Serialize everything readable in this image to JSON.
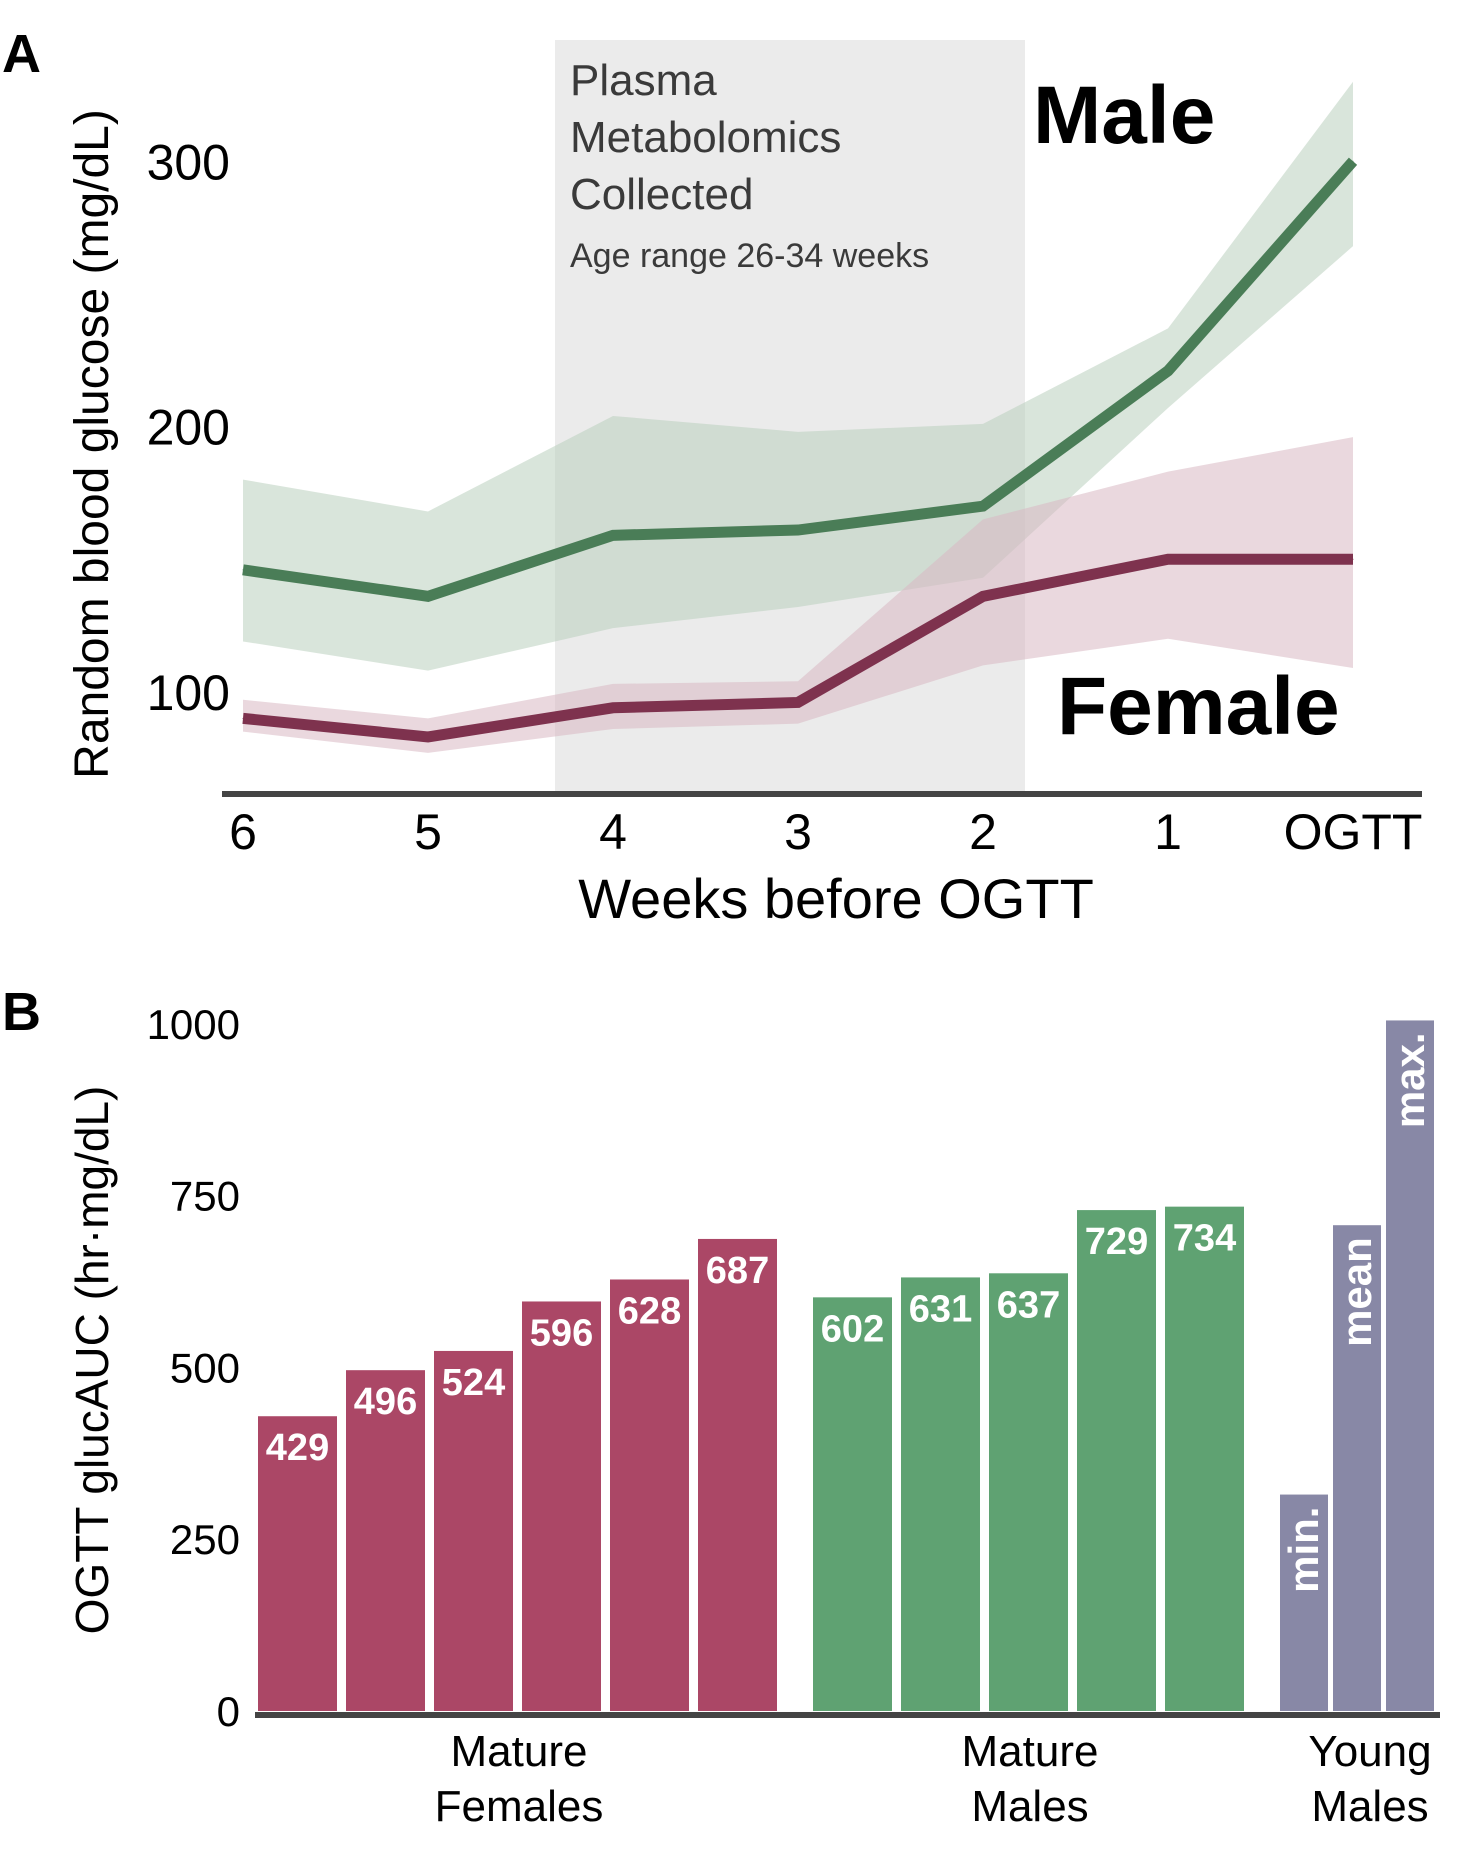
{
  "figure": {
    "colors": {
      "male": "#4a7d57",
      "male_band": "#b9cfbe",
      "female": "#7e324e",
      "female_band": "#d9b8c2",
      "shaded_region": "#ebebeb",
      "axis": "#444444",
      "bar_female": "#ab4766",
      "bar_male": "#5fa272",
      "bar_young": "#8888a6"
    }
  },
  "panel_a": {
    "letter": "A",
    "annotation": {
      "line1": "Plasma",
      "line2": "Metabolomics",
      "line3": "Collected",
      "line4": "Age range 26-34 weeks"
    },
    "male_label": "Male",
    "female_label": "Female"
  },
  "panel_b": {
    "letter": "B",
    "groups": {
      "mature_females": [
        "Mature",
        "Females"
      ],
      "mature_males": [
        "Mature",
        "Males"
      ],
      "young_males": [
        "Young",
        "Males"
      ]
    }
  },
  "chart_data": [
    {
      "type": "line",
      "xlabel": "Weeks before OGTT",
      "ylabel": "Random blood glucose (mg/dL)",
      "categories": [
        "6",
        "5",
        "4",
        "3",
        "2",
        "1",
        "OGTT"
      ],
      "yticks": [
        100,
        200,
        300
      ],
      "ylim": [
        63,
        328
      ],
      "shaded_region": {
        "from": "between 5 and 4",
        "to": "between 2 and 1"
      },
      "grid": false,
      "series": [
        {
          "name": "Male",
          "values": [
            146,
            136,
            159,
            161,
            170,
            221,
            300
          ],
          "lower": [
            119,
            108,
            124,
            132,
            143,
            207,
            268
          ],
          "upper": [
            180,
            168,
            204,
            198,
            201,
            237,
            330
          ]
        },
        {
          "name": "Female",
          "values": [
            90,
            83,
            94,
            96,
            136,
            150,
            150
          ],
          "lower": [
            85,
            77,
            86,
            88,
            110,
            120,
            109
          ],
          "upper": [
            97,
            90,
            103,
            104,
            165,
            183,
            196
          ]
        }
      ]
    },
    {
      "type": "bar",
      "xlabel": "",
      "ylabel": "OGTT glucAUC (hr·mg/dL)",
      "ylim": [
        0,
        1010
      ],
      "yticks": [
        0,
        250,
        500,
        750,
        1000
      ],
      "grid": false,
      "bars": [
        {
          "group": "Mature Females",
          "value": 429,
          "label": "429"
        },
        {
          "group": "Mature Females",
          "value": 496,
          "label": "496"
        },
        {
          "group": "Mature Females",
          "value": 524,
          "label": "524"
        },
        {
          "group": "Mature Females",
          "value": 596,
          "label": "596"
        },
        {
          "group": "Mature Females",
          "value": 628,
          "label": "628"
        },
        {
          "group": "Mature Females",
          "value": 687,
          "label": "687"
        },
        {
          "group": "Mature Males",
          "value": 602,
          "label": "602"
        },
        {
          "group": "Mature Males",
          "value": 631,
          "label": "631"
        },
        {
          "group": "Mature Males",
          "value": 637,
          "label": "637"
        },
        {
          "group": "Mature Males",
          "value": 729,
          "label": "729"
        },
        {
          "group": "Mature Males",
          "value": 734,
          "label": "734"
        },
        {
          "group": "Young Males",
          "value": 315,
          "label": "min."
        },
        {
          "group": "Young Males",
          "value": 707,
          "label": "mean"
        },
        {
          "group": "Young Males",
          "value": 1005,
          "label": "max."
        }
      ]
    }
  ]
}
